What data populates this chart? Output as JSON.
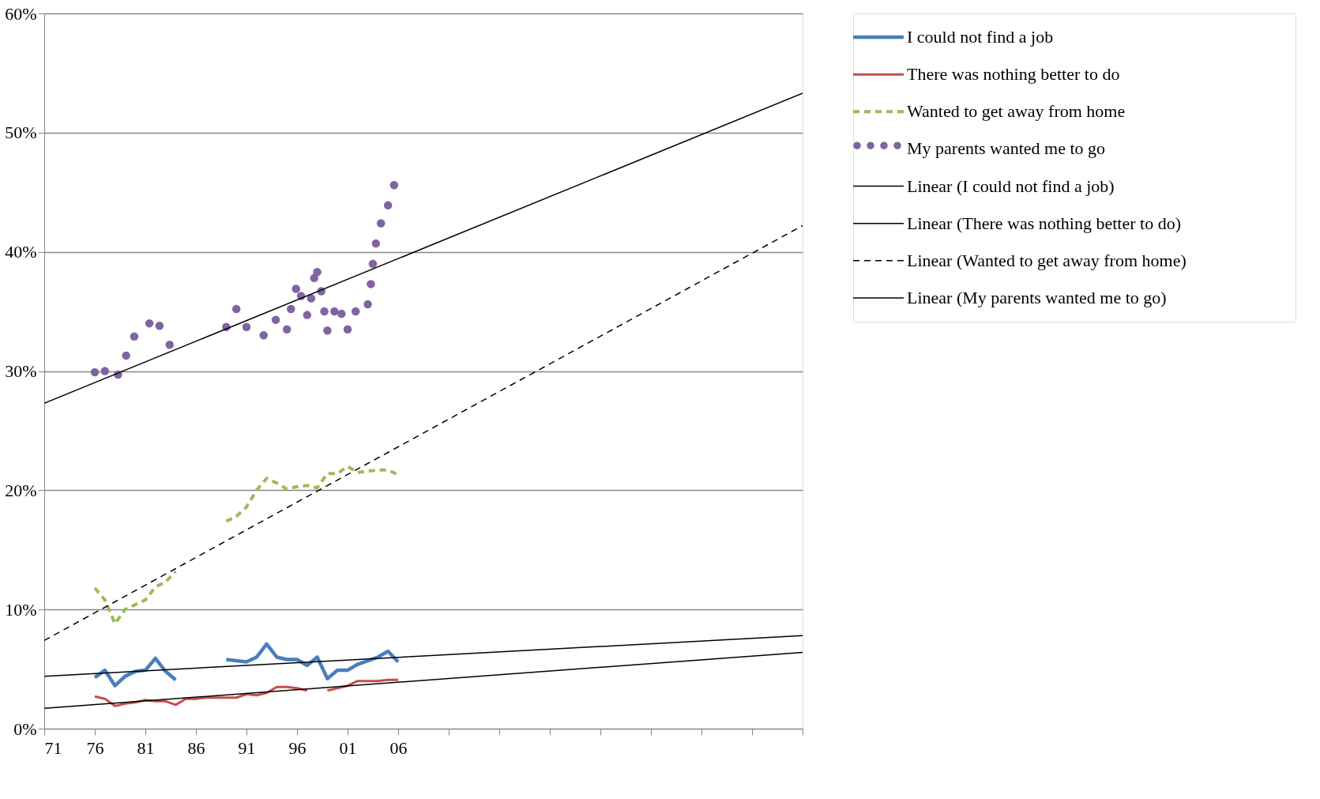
{
  "chart_data": {
    "type": "line",
    "xlim": [
      1971,
      2046
    ],
    "xticks": [
      {
        "value": 1971,
        "label": "71"
      },
      {
        "value": 1976,
        "label": "76"
      },
      {
        "value": 1981,
        "label": "81"
      },
      {
        "value": 1986,
        "label": "86"
      },
      {
        "value": 1991,
        "label": "91"
      },
      {
        "value": 1996,
        "label": "96"
      },
      {
        "value": 2001,
        "label": "01"
      },
      {
        "value": 2006,
        "label": "06"
      },
      {
        "value": 2011,
        "label": null
      },
      {
        "value": 2016,
        "label": null
      },
      {
        "value": 2021,
        "label": null
      },
      {
        "value": 2026,
        "label": null
      },
      {
        "value": 2031,
        "label": null
      },
      {
        "value": 2036,
        "label": null
      },
      {
        "value": 2041,
        "label": null
      },
      {
        "value": 2046,
        "label": null
      }
    ],
    "ylim": [
      0,
      60
    ],
    "yticks": [
      {
        "value": 0,
        "label": "0%"
      },
      {
        "value": 10,
        "label": "10%"
      },
      {
        "value": 20,
        "label": "20%"
      },
      {
        "value": 30,
        "label": "30%"
      },
      {
        "value": 40,
        "label": "40%"
      },
      {
        "value": 50,
        "label": "50%"
      },
      {
        "value": 60,
        "label": "60%"
      }
    ],
    "grid": "y",
    "legend": "right",
    "series": [
      {
        "name": "I could not find a job",
        "type": "line",
        "color": "#4a7ebb",
        "line_style": "solid",
        "x": [
          1976,
          1977,
          1978,
          1979,
          1980,
          1981,
          1982,
          1983,
          1984,
          1985,
          1986,
          1987,
          1988,
          1989,
          1990,
          1991,
          1992,
          1993,
          1994,
          1995,
          1996,
          1997,
          1998,
          1999,
          2000,
          2001,
          2002,
          2003,
          2004,
          2005,
          2006
        ],
        "values": [
          4.3,
          4.9,
          3.6,
          4.4,
          4.8,
          4.9,
          5.9,
          4.8,
          4.1,
          null,
          null,
          null,
          null,
          5.8,
          5.7,
          5.6,
          6.0,
          7.1,
          6.0,
          5.8,
          5.8,
          5.3,
          6.0,
          4.2,
          4.9,
          4.9,
          5.4,
          5.7,
          6.0,
          6.5,
          5.6
        ]
      },
      {
        "name": "There was nothing better to do",
        "type": "line",
        "color": "#c0504d",
        "line_style": "solid",
        "x": [
          1976,
          1977,
          1978,
          1979,
          1980,
          1981,
          1982,
          1983,
          1984,
          1985,
          1986,
          1987,
          1988,
          1989,
          1990,
          1991,
          1992,
          1993,
          1994,
          1995,
          1996,
          1997,
          1998,
          1999,
          2000,
          2001,
          2002,
          2003,
          2004,
          2005,
          2006
        ],
        "values": [
          2.7,
          2.5,
          1.9,
          2.1,
          2.2,
          2.4,
          2.3,
          2.3,
          2.0,
          2.5,
          2.5,
          2.6,
          2.6,
          2.6,
          2.6,
          2.9,
          2.8,
          3.0,
          3.5,
          3.5,
          3.4,
          3.2,
          null,
          3.2,
          3.4,
          3.6,
          4.0,
          4.0,
          4.0,
          4.1,
          4.1
        ]
      },
      {
        "name": "Wanted to get away from home",
        "type": "line",
        "color": "#9bbb59",
        "line_style": "dashed",
        "x": [
          1976,
          1977,
          1978,
          1979,
          1980,
          1981,
          1982,
          1983,
          1984,
          1985,
          1986,
          1987,
          1988,
          1989,
          1990,
          1991,
          1992,
          1993,
          1994,
          1995,
          1996,
          1997,
          1998,
          1999,
          2000,
          2001,
          2002,
          2003,
          2004,
          2005,
          2006
        ],
        "values": [
          11.8,
          10.8,
          8.8,
          10.0,
          10.4,
          10.8,
          11.9,
          12.3,
          13.2,
          null,
          null,
          null,
          null,
          17.4,
          17.8,
          18.6,
          20.0,
          21.0,
          20.6,
          20.1,
          20.3,
          20.4,
          20.2,
          21.4,
          21.4,
          22.0,
          21.5,
          21.6,
          21.7,
          21.7,
          21.3
        ]
      },
      {
        "name": "My parents wanted me to go",
        "type": "scatter",
        "color": "#8064a2",
        "marker": "circle",
        "x": [
          1976,
          1977,
          1978.3,
          1979.1,
          1979.9,
          1981.4,
          1982.4,
          1983.4,
          1989,
          1990,
          1991,
          1992.7,
          1993.9,
          1995,
          1995.4,
          1995.9,
          1996.4,
          1997,
          1997.4,
          1997.7,
          1998,
          1998.4,
          1998.7,
          1999,
          1999.7,
          2000.4,
          2001,
          2001.8,
          2003,
          2003.3,
          2003.5,
          2003.8,
          2004.3,
          2005,
          2005.6
        ],
        "values": [
          29.9,
          30.0,
          29.7,
          31.3,
          32.9,
          34.0,
          33.8,
          32.2,
          33.7,
          35.2,
          33.7,
          33.0,
          34.3,
          33.5,
          35.2,
          36.9,
          36.3,
          34.7,
          36.1,
          37.8,
          38.3,
          36.7,
          35.0,
          33.4,
          35.0,
          34.8,
          33.5,
          35.0,
          35.6,
          37.3,
          39.0,
          40.7,
          42.4,
          43.9,
          45.6
        ]
      },
      {
        "name": "Linear (I could not find a job)",
        "type": "line",
        "color": "#000000",
        "line_style": "solid",
        "x": [
          1971,
          2046
        ],
        "values": [
          4.4,
          7.8
        ]
      },
      {
        "name": "Linear (There was nothing better to do)",
        "type": "line",
        "color": "#000000",
        "line_style": "solid",
        "x": [
          1971,
          2046
        ],
        "values": [
          1.7,
          6.4
        ]
      },
      {
        "name": "Linear (Wanted to get away from home)",
        "type": "line",
        "color": "#000000",
        "line_style": "dashed",
        "x": [
          1971,
          2046
        ],
        "values": [
          7.4,
          42.2
        ]
      },
      {
        "name": "Linear (My parents wanted me to go)",
        "type": "line",
        "color": "#000000",
        "line_style": "solid",
        "x": [
          1971,
          2046
        ],
        "values": [
          27.3,
          53.3
        ]
      }
    ]
  }
}
